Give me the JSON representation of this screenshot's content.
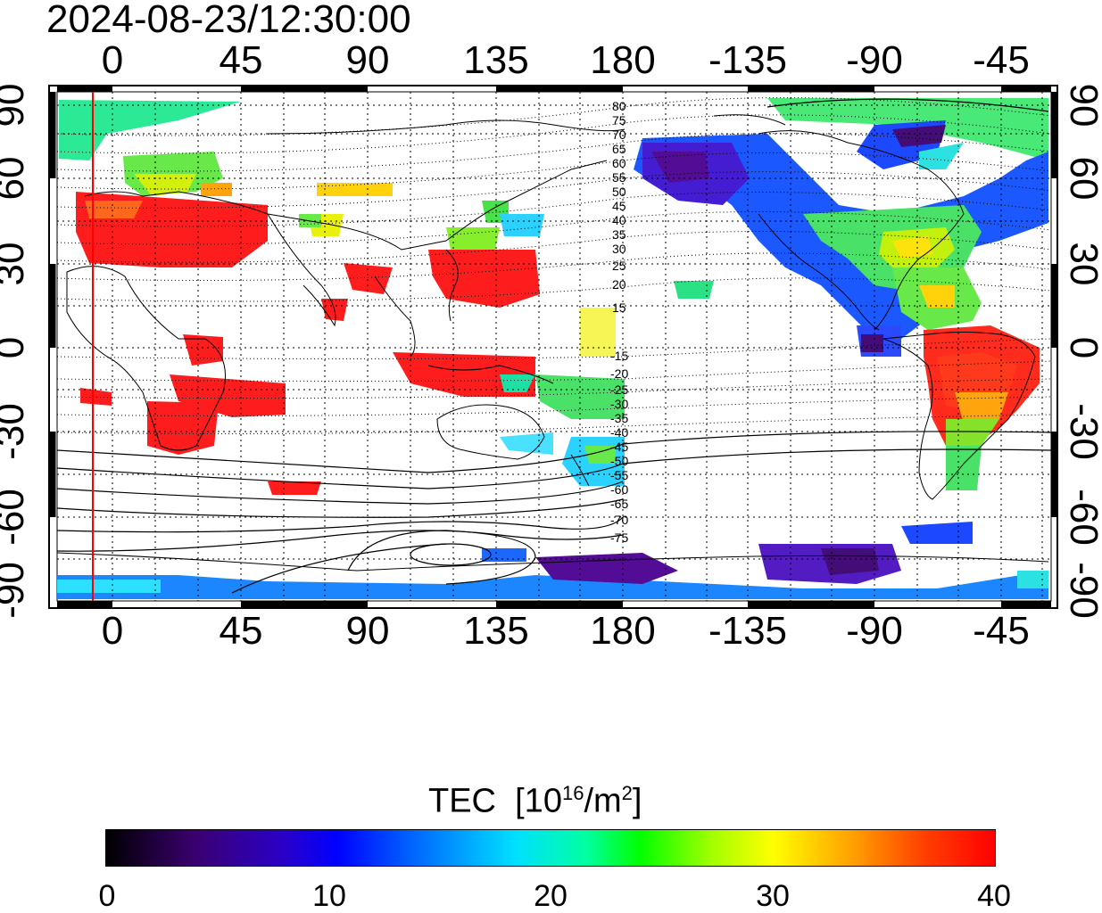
{
  "timestamp": "2024-08-23/12:30:00",
  "axes": {
    "lon_ticks": [
      "0",
      "45",
      "90",
      "135",
      "180",
      "-135",
      "-90",
      "-45"
    ],
    "lat_ticks_left": [
      "90",
      "60",
      "30",
      "0",
      "-30",
      "-60",
      "-90"
    ],
    "lat_ticks_right": [
      "90",
      "60",
      "30",
      "0",
      "-30",
      "-60",
      "-90"
    ]
  },
  "contour_labels_north": [
    "80",
    "75",
    "70",
    "65",
    "60",
    "55",
    "50",
    "45",
    "40",
    "35",
    "30",
    "25",
    "20",
    "15"
  ],
  "contour_labels_south": [
    "-15",
    "-20",
    "-25",
    "-30",
    "-35",
    "-40",
    "-45",
    "-50",
    "-55",
    "-60",
    "-65",
    "-70",
    "-75"
  ],
  "colorbar": {
    "title": "TEC",
    "unit_prefix": "[10",
    "unit_exp": "16",
    "unit_mid": "/m",
    "unit_exp2": "2",
    "unit_suffix": "]",
    "min": 0,
    "max": 40,
    "labels": [
      "0",
      "10",
      "20",
      "30",
      "40"
    ]
  },
  "colors": {
    "high": "#ff0000",
    "mid": "#00ff00",
    "low": "#0000ff",
    "very_low": "#3a0070",
    "terminator_line": "#ff0000"
  }
}
